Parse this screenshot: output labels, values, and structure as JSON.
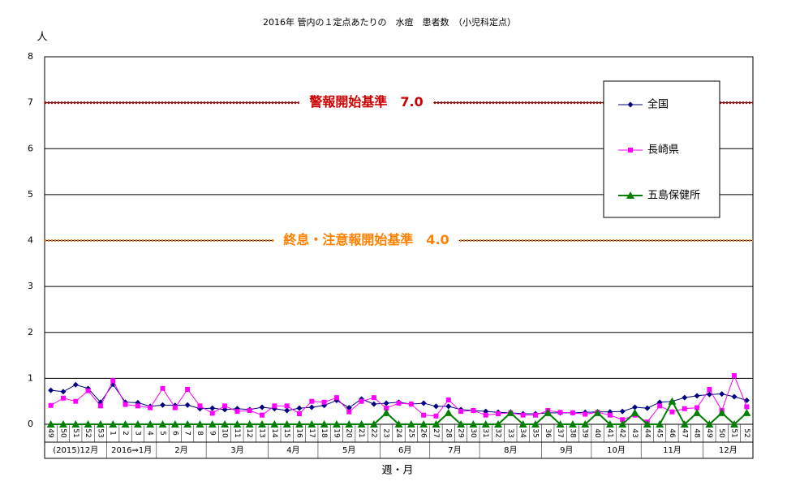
{
  "chart_data": {
    "type": "line",
    "title": "2016年 管内の１定点あたりの　水痘　患者数　（小児科定点）",
    "y_label": "人",
    "x_label": "週・月",
    "categories": [
      "49",
      "50",
      "51",
      "52",
      "53",
      "1",
      "2",
      "3",
      "4",
      "5",
      "6",
      "7",
      "8",
      "9",
      "10",
      "11",
      "12",
      "13",
      "14",
      "15",
      "16",
      "17",
      "18",
      "19",
      "20",
      "21",
      "22",
      "23",
      "24",
      "25",
      "26",
      "27",
      "28",
      "29",
      "30",
      "31",
      "32",
      "33",
      "34",
      "35",
      "36",
      "37",
      "38",
      "39",
      "40",
      "41",
      "42",
      "43",
      "44",
      "45",
      "46",
      "47",
      "48",
      "49",
      "50",
      "51",
      "52"
    ],
    "months": [
      "(2015)12月",
      "2016⇒1月",
      "2月",
      "3月",
      "4月",
      "5月",
      "6月",
      "7月",
      "8月",
      "9月",
      "10月",
      "11月",
      "12月"
    ],
    "series": [
      {
        "name": "全国",
        "color": "#000080",
        "marker": "diamond",
        "values": [
          0.74,
          0.71,
          0.86,
          0.78,
          0.48,
          0.87,
          0.48,
          0.47,
          0.39,
          0.42,
          0.41,
          0.42,
          0.34,
          0.35,
          0.32,
          0.34,
          0.32,
          0.37,
          0.34,
          0.3,
          0.35,
          0.37,
          0.41,
          0.52,
          0.36,
          0.55,
          0.44,
          0.46,
          0.48,
          0.44,
          0.46,
          0.39,
          0.39,
          0.32,
          0.3,
          0.28,
          0.26,
          0.25,
          0.23,
          0.23,
          0.25,
          0.25,
          0.25,
          0.26,
          0.27,
          0.27,
          0.28,
          0.37,
          0.35,
          0.48,
          0.5,
          0.58,
          0.62,
          0.65,
          0.66,
          0.6,
          0.52
        ]
      },
      {
        "name": "長崎県",
        "color": "#ff00ff",
        "marker": "square",
        "values": [
          0.41,
          0.57,
          0.5,
          0.73,
          0.4,
          0.95,
          0.43,
          0.4,
          0.36,
          0.78,
          0.36,
          0.76,
          0.4,
          0.24,
          0.4,
          0.28,
          0.3,
          0.2,
          0.4,
          0.4,
          0.23,
          0.5,
          0.48,
          0.58,
          0.27,
          0.5,
          0.58,
          0.35,
          0.46,
          0.44,
          0.2,
          0.18,
          0.53,
          0.28,
          0.3,
          0.2,
          0.23,
          0.25,
          0.2,
          0.2,
          0.3,
          0.26,
          0.25,
          0.22,
          0.26,
          0.2,
          0.1,
          0.2,
          0.05,
          0.4,
          0.27,
          0.34,
          0.36,
          0.76,
          0.3,
          1.06,
          0.38
        ]
      },
      {
        "name": "五島保健所",
        "color": "#008000",
        "marker": "triangle",
        "values": [
          0,
          0,
          0,
          0,
          0,
          0,
          0,
          0,
          0,
          0,
          0,
          0,
          0,
          0,
          0,
          0,
          0,
          0,
          0,
          0,
          0,
          0,
          0,
          0,
          0,
          0,
          0,
          0.25,
          0,
          0,
          0,
          0,
          0.25,
          0,
          0,
          0,
          0,
          0.25,
          0,
          0,
          0.25,
          0,
          0,
          0,
          0.25,
          0,
          0,
          0.25,
          0,
          0,
          0.5,
          0,
          0.25,
          0,
          0.25,
          0,
          0.25
        ]
      }
    ],
    "reference_lines": [
      {
        "value": 7,
        "label": "警報開始基準　7.0",
        "color": "#cc0000"
      },
      {
        "value": 4,
        "label": "終息・注意報開始基準　4.0",
        "color": "#ff8000"
      }
    ],
    "ylim": [
      0,
      8
    ],
    "yticks": [
      0,
      1,
      2,
      3,
      4,
      5,
      6,
      7,
      8
    ],
    "grid": true,
    "legend": "upper right"
  }
}
